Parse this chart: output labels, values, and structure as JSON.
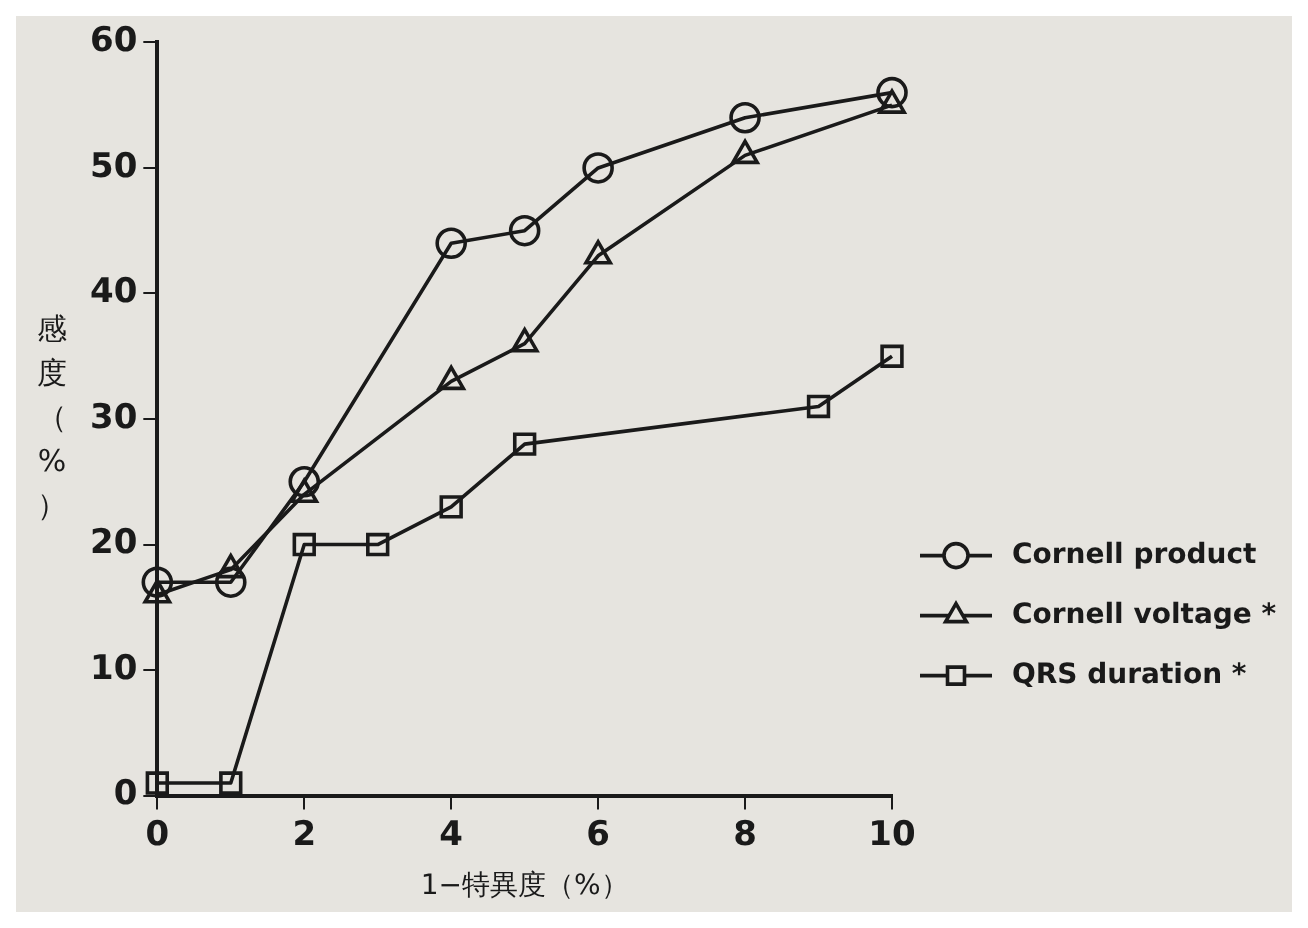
{
  "chart_data": {
    "type": "line",
    "xlabel": "1−特異度（%）",
    "ylabel": "感度（%）",
    "xlim": [
      0,
      10
    ],
    "xticks": [
      0,
      2,
      4,
      6,
      8,
      10
    ],
    "ylim": [
      0,
      60
    ],
    "yticks": [
      0,
      10,
      20,
      30,
      40,
      50,
      60
    ],
    "grid": false,
    "legend": "bottom right",
    "line_style": "solid",
    "series": [
      {
        "name": "Cornell product",
        "color": "#1a1a1a",
        "marker": "circle",
        "x": [
          0,
          1,
          2,
          4,
          5,
          6,
          8,
          10
        ],
        "values": [
          17,
          17,
          25,
          44,
          45,
          50,
          54,
          56
        ]
      },
      {
        "name": "Cornell voltage *",
        "color": "#1a1a1a",
        "marker": "triangle",
        "x": [
          0,
          1,
          2,
          4,
          5,
          6,
          8,
          10
        ],
        "values": [
          16,
          18,
          24,
          33,
          36,
          43,
          51,
          55
        ]
      },
      {
        "name": "QRS duration *",
        "color": "#1a1a1a",
        "marker": "square",
        "x": [
          0,
          1,
          2,
          3,
          4,
          5,
          9,
          10
        ],
        "values": [
          1,
          1,
          20,
          20,
          23,
          28,
          31,
          35
        ]
      }
    ]
  }
}
